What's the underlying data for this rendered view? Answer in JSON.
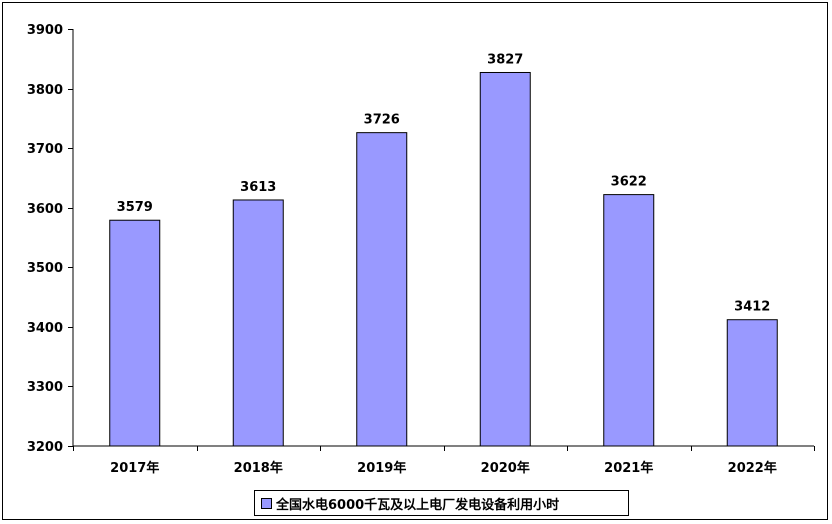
{
  "chart_data": {
    "type": "bar",
    "categories": [
      "2017年",
      "2018年",
      "2019年",
      "2020年",
      "2021年",
      "2022年"
    ],
    "series": [
      {
        "name": "全国水电6000千瓦及以上电厂发电设备利用小时",
        "values": [
          3579,
          3613,
          3726,
          3827,
          3622,
          3412
        ]
      }
    ],
    "ylim": [
      3200,
      3900
    ],
    "yticks": [
      3200,
      3300,
      3400,
      3500,
      3600,
      3700,
      3800,
      3900
    ],
    "grid": false,
    "legend_position": "bottom",
    "bar_color": "#9999ff"
  }
}
